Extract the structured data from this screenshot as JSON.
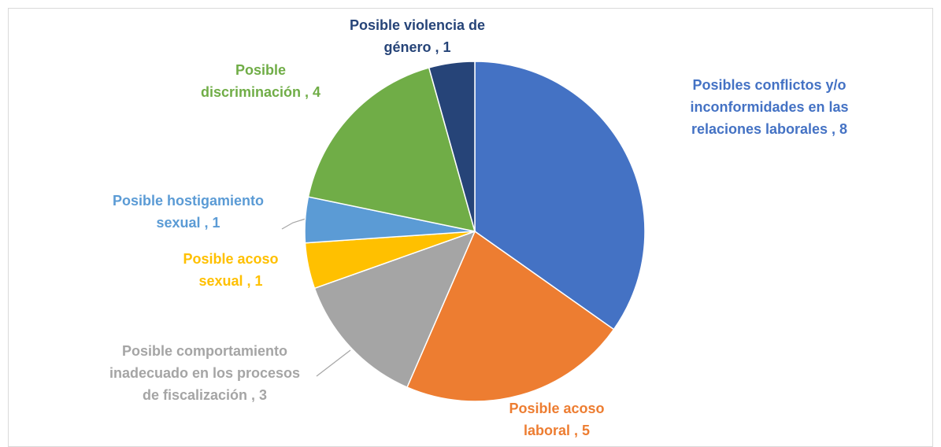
{
  "chart_data": {
    "type": "pie",
    "values": [
      8,
      5,
      3,
      1,
      1,
      4,
      1
    ],
    "value_labels": [
      [
        "Posibles conflictos y/o",
        "inconformidades en las",
        "relaciones laborales , 8"
      ],
      [
        "Posible acoso",
        "laboral , 5"
      ],
      [
        "Posible comportamiento",
        "inadecuado en los procesos",
        "de fiscalización , 3"
      ],
      [
        "Posible acoso",
        "sexual , 1"
      ],
      [
        "Posible hostigamiento",
        "sexual , 1"
      ],
      [
        "Posible",
        "discriminación , 4"
      ],
      [
        "Posible violencia de",
        "género , 1"
      ]
    ],
    "colors": [
      "#4472C4",
      "#ED7D31",
      "#A5A5A5",
      "#FFC000",
      "#5B9BD5",
      "#70AD47",
      "#264478"
    ]
  }
}
